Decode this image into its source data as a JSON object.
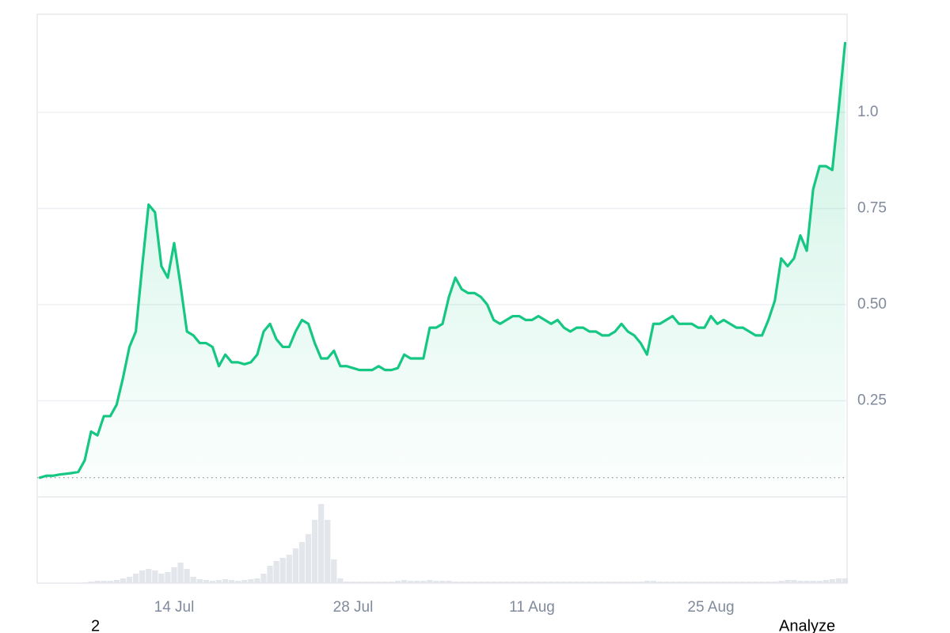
{
  "chart_data": {
    "type": "line",
    "categories": [
      null,
      null,
      null,
      null,
      null,
      null,
      null,
      null,
      null,
      null,
      null,
      null,
      null,
      null,
      null,
      null,
      null,
      null,
      null,
      null,
      null,
      "14 Jul",
      null,
      null,
      null,
      null,
      null,
      null,
      null,
      null,
      null,
      null,
      null,
      null,
      null,
      null,
      null,
      null,
      null,
      null,
      null,
      null,
      null,
      null,
      null,
      null,
      null,
      null,
      null,
      "28 Jul",
      null,
      null,
      null,
      null,
      null,
      null,
      null,
      null,
      null,
      null,
      null,
      null,
      null,
      null,
      null,
      null,
      null,
      null,
      null,
      null,
      null,
      null,
      null,
      null,
      null,
      null,
      null,
      "11 Aug",
      null,
      null,
      null,
      null,
      null,
      null,
      null,
      null,
      null,
      null,
      null,
      null,
      null,
      null,
      null,
      null,
      null,
      null,
      null,
      null,
      null,
      null,
      null,
      null,
      null,
      null,
      null,
      "25 Aug",
      null,
      null,
      null,
      null,
      null,
      null,
      null,
      null,
      null,
      null,
      null,
      null,
      null,
      null,
      null,
      null,
      null,
      null,
      null,
      null,
      null
    ],
    "values": [
      0.05,
      0.055,
      0.055,
      0.058,
      0.06,
      0.062,
      0.065,
      0.095,
      0.17,
      0.16,
      0.21,
      0.21,
      0.24,
      0.31,
      0.39,
      0.43,
      0.6,
      0.76,
      0.74,
      0.6,
      0.57,
      0.66,
      0.55,
      0.43,
      0.42,
      0.4,
      0.4,
      0.39,
      0.34,
      0.37,
      0.35,
      0.35,
      0.345,
      0.35,
      0.37,
      0.43,
      0.45,
      0.41,
      0.39,
      0.39,
      0.43,
      0.46,
      0.45,
      0.4,
      0.36,
      0.36,
      0.38,
      0.34,
      0.34,
      0.335,
      0.33,
      0.33,
      0.33,
      0.34,
      0.33,
      0.33,
      0.335,
      0.37,
      0.36,
      0.36,
      0.36,
      0.44,
      0.44,
      0.45,
      0.52,
      0.57,
      0.54,
      0.53,
      0.53,
      0.52,
      0.5,
      0.46,
      0.45,
      0.46,
      0.47,
      0.47,
      0.46,
      0.46,
      0.47,
      0.46,
      0.45,
      0.46,
      0.44,
      0.43,
      0.44,
      0.44,
      0.43,
      0.43,
      0.42,
      0.42,
      0.43,
      0.45,
      0.43,
      0.42,
      0.4,
      0.37,
      0.45,
      0.45,
      0.46,
      0.47,
      0.45,
      0.45,
      0.45,
      0.44,
      0.44,
      0.47,
      0.45,
      0.46,
      0.45,
      0.44,
      0.44,
      0.43,
      0.42,
      0.42,
      0.46,
      0.51,
      0.62,
      0.6,
      0.62,
      0.68,
      0.64,
      0.8,
      0.86,
      0.86,
      0.85,
      1.01,
      1.18
    ],
    "color": "#16c784",
    "volume": {
      "color": "#e3e6eb",
      "values": [
        0,
        0,
        0,
        0,
        0,
        0,
        0,
        1,
        2,
        3,
        3,
        3,
        4,
        6,
        8,
        12,
        16,
        18,
        16,
        12,
        14,
        20,
        26,
        18,
        8,
        5,
        4,
        3,
        4,
        5,
        4,
        3,
        4,
        5,
        6,
        12,
        22,
        28,
        32,
        36,
        44,
        52,
        62,
        80,
        100,
        80,
        30,
        6,
        2,
        2,
        2,
        2,
        2,
        2,
        2,
        2,
        3,
        4,
        3,
        3,
        3,
        4,
        3,
        3,
        3,
        2,
        2,
        2,
        2,
        2,
        2,
        2,
        2,
        2,
        2,
        2,
        2,
        2,
        2,
        2,
        2,
        2,
        2,
        2,
        2,
        2,
        2,
        2,
        2,
        2,
        2,
        2,
        2,
        2,
        2,
        3,
        3,
        2,
        2,
        2,
        2,
        2,
        2,
        2,
        2,
        2,
        2,
        2,
        2,
        2,
        2,
        2,
        2,
        2,
        2,
        2,
        3,
        4,
        4,
        3,
        3,
        3,
        3,
        4,
        5,
        6,
        6
      ]
    },
    "ylim": [
      0,
      1.255
    ],
    "yticks": [
      0.25,
      {
        "value": 0.5,
        "label": "0.50"
      },
      0.75,
      {
        "value": 1,
        "label": "1.0"
      }
    ],
    "grid": true
  },
  "footer": {
    "left": "2",
    "right": "Analyze"
  }
}
